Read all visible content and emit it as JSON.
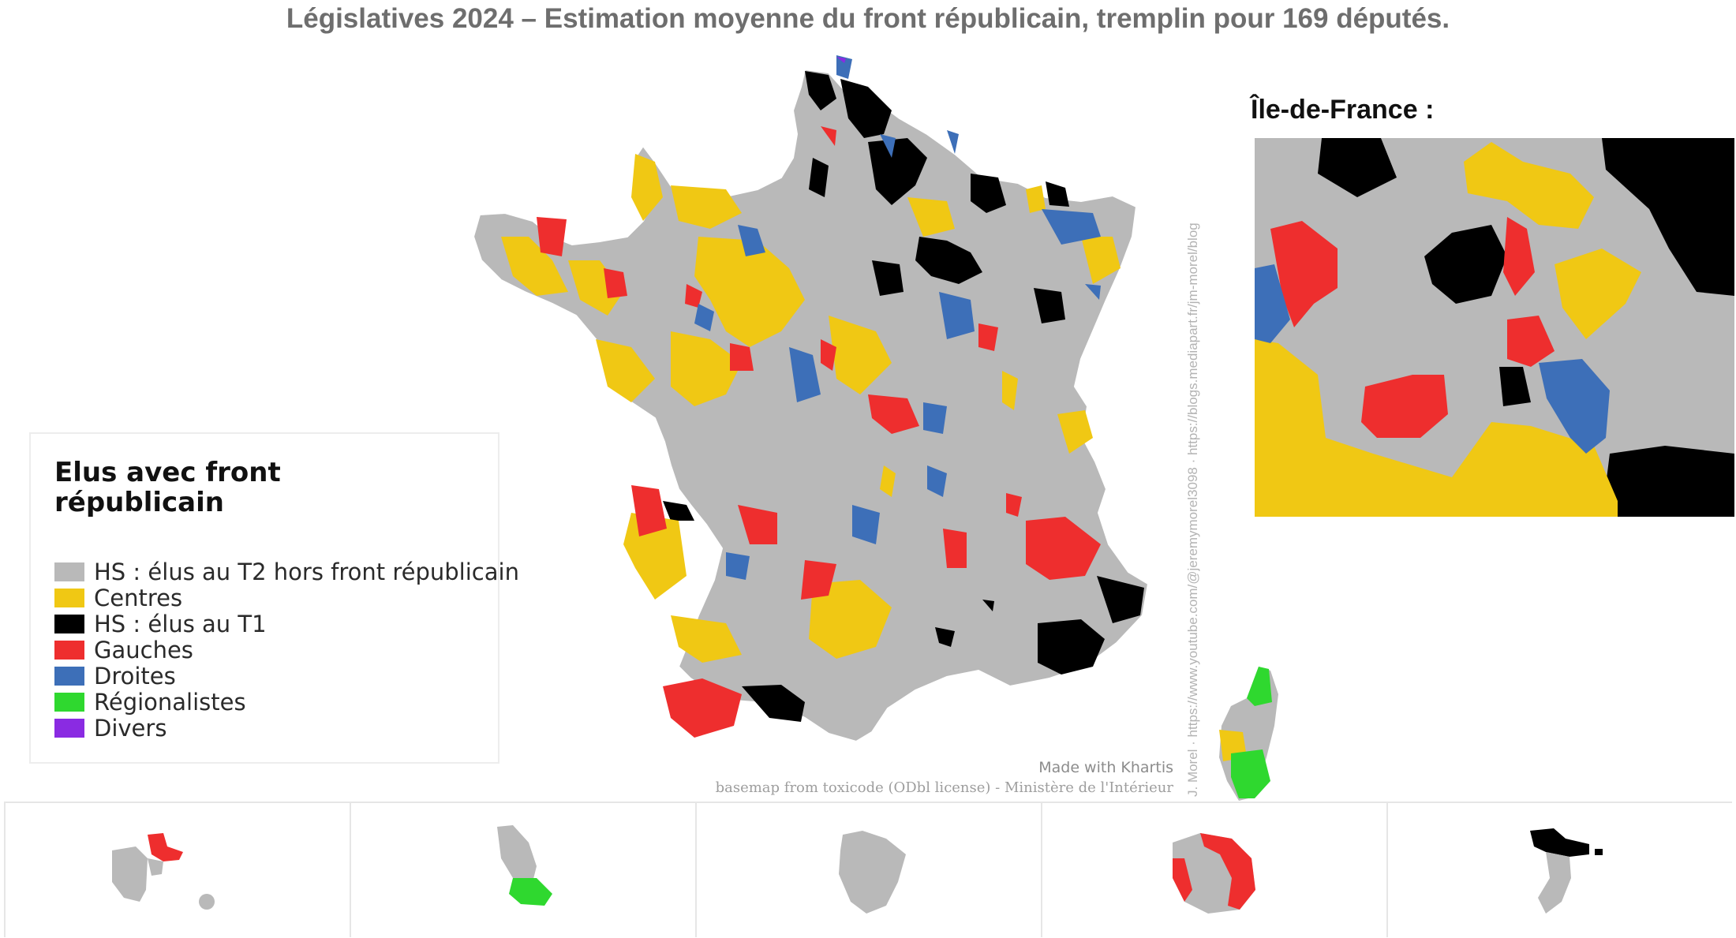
{
  "title": "Législatives 2024 – Estimation moyenne du front républicain, tremplin pour 169 députés.",
  "legend": {
    "title": "Elus avec front républicain",
    "items": [
      {
        "label": "HS : élus au T2 hors front républicain",
        "color": "#b9b9b9"
      },
      {
        "label": "Centres",
        "color": "#f0c814"
      },
      {
        "label": "HS : élus au T1",
        "color": "#000000"
      },
      {
        "label": "Gauches",
        "color": "#ee2e2e"
      },
      {
        "label": "Droites",
        "color": "#3d6fb8"
      },
      {
        "label": "Régionalistes",
        "color": "#2fd82f"
      },
      {
        "label": "Divers",
        "color": "#8a2be2"
      }
    ]
  },
  "inset_title": "Île-de-France :",
  "credits": {
    "vertical": "J. Morel · https://www.youtube.com/@jeremymorel3098 · https://blogs.mediapart.fr/jm-morel/blog",
    "made_with": "Made with Khartis",
    "basemap": "basemap from toxicode (ODbl license) - Ministère de l'Intérieur"
  },
  "colors": {
    "grey": "#b9b9b9",
    "yellow": "#f0c814",
    "black": "#000000",
    "red": "#ee2e2e",
    "blue": "#3d6fb8",
    "green": "#2fd82f",
    "purple": "#8a2be2"
  }
}
